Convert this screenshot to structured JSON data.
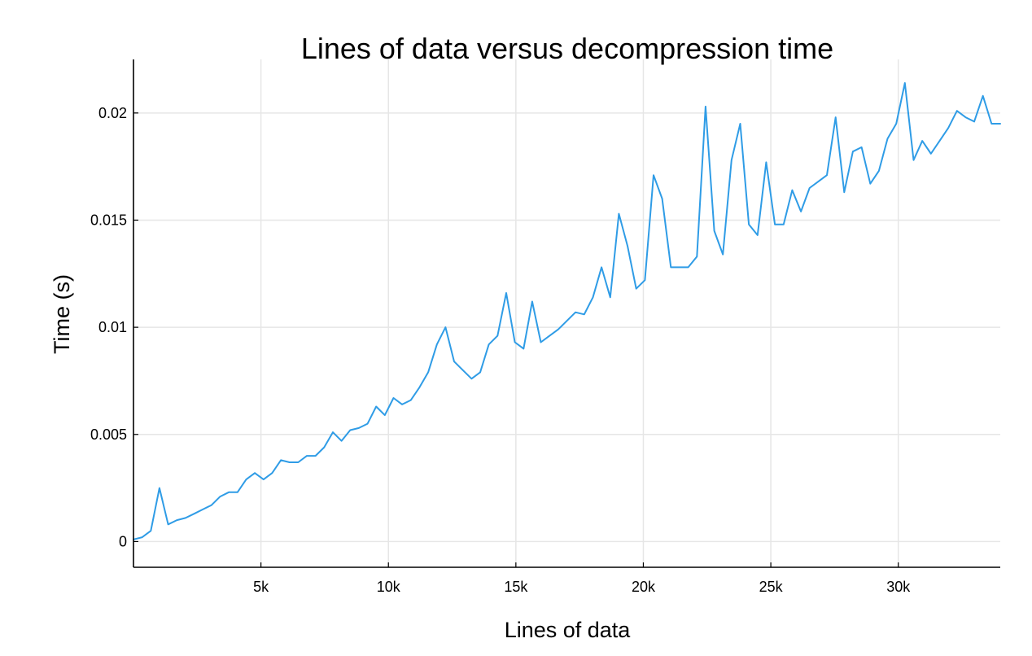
{
  "chart_data": {
    "type": "line",
    "title": "Lines of data versus decompression time",
    "xlabel": "Lines of data",
    "ylabel": "Time (s)",
    "xlim": [
      0,
      34000
    ],
    "ylim": [
      -0.0012,
      0.0225
    ],
    "x_ticks": [
      5000,
      10000,
      15000,
      20000,
      25000,
      30000
    ],
    "x_tick_labels": [
      "5k",
      "10k",
      "15k",
      "20k",
      "25k",
      "30k"
    ],
    "y_ticks": [
      0,
      0.005,
      0.01,
      0.015,
      0.02
    ],
    "y_tick_labels": [
      "0",
      "0.005",
      "0.01",
      "0.015",
      "0.02"
    ],
    "grid": true,
    "legend": "none",
    "line_color": "#2f9ce6",
    "series": [
      {
        "x": [
          0,
          340,
          680,
          1020,
          1360,
          1700,
          2040,
          2380,
          2720,
          3060,
          3400,
          3740,
          4080,
          4420,
          4760,
          5100,
          5440,
          5780,
          6120,
          6460,
          6800,
          7140,
          7480,
          7820,
          8160,
          8500,
          8840,
          9180,
          9520,
          9860,
          10200,
          10540,
          10880,
          11220,
          11560,
          11900,
          12240,
          12580,
          12920,
          13260,
          13600,
          13940,
          14280,
          14620,
          14960,
          15300,
          15640,
          15980,
          16320,
          16660,
          17000,
          17340,
          17680,
          18020,
          18360,
          18700,
          19040,
          19380,
          19720,
          20060,
          20400,
          20740,
          21080,
          21420,
          21760,
          22100,
          22440,
          22780,
          23120,
          23460,
          23800,
          24140,
          24480,
          24820,
          25160,
          25500,
          25840,
          26180,
          26520,
          26860,
          27200,
          27540,
          27880,
          28220,
          28560,
          28900,
          29240,
          29580,
          29920,
          30260,
          30600,
          30940,
          31280,
          31620,
          31960,
          32300,
          32640,
          32980,
          33320,
          33660,
          34000
        ],
        "values": [
          0.0001,
          0.0002,
          0.0005,
          0.0025,
          0.0008,
          0.001,
          0.0011,
          0.0013,
          0.0015,
          0.0017,
          0.0021,
          0.0023,
          0.0023,
          0.0029,
          0.0032,
          0.0029,
          0.0032,
          0.0038,
          0.0037,
          0.0037,
          0.004,
          0.004,
          0.0044,
          0.0051,
          0.0047,
          0.0052,
          0.0053,
          0.0055,
          0.0063,
          0.0059,
          0.0067,
          0.0064,
          0.0066,
          0.0072,
          0.0079,
          0.0092,
          0.01,
          0.0084,
          0.008,
          0.0076,
          0.0079,
          0.0092,
          0.0096,
          0.0116,
          0.0093,
          0.009,
          0.0112,
          0.0093,
          0.0096,
          0.0099,
          0.0103,
          0.0107,
          0.0106,
          0.0114,
          0.0128,
          0.0114,
          0.0153,
          0.0138,
          0.0118,
          0.0122,
          0.0171,
          0.016,
          0.0128,
          0.0128,
          0.0128,
          0.0133,
          0.0203,
          0.0145,
          0.0134,
          0.0178,
          0.0195,
          0.0148,
          0.0143,
          0.0177,
          0.0148,
          0.0148,
          0.0164,
          0.0154,
          0.0165,
          0.0168,
          0.0171,
          0.0198,
          0.0163,
          0.0182,
          0.0184,
          0.0167,
          0.0173,
          0.0188,
          0.0195,
          0.0214,
          0.0178,
          0.0187,
          0.0181,
          0.0187,
          0.0193,
          0.0201,
          0.0198,
          0.0196,
          0.0208,
          0.0195,
          0.0195
        ]
      }
    ]
  }
}
